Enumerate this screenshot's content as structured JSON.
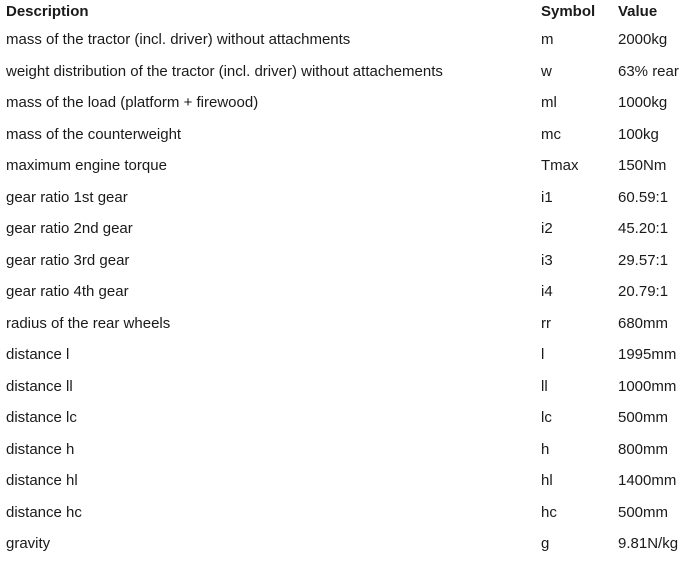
{
  "headers": {
    "description": "Description",
    "symbol": "Symbol",
    "value": "Value"
  },
  "rows": [
    {
      "description": "mass of the tractor (incl. driver) without attachments",
      "symbol": "m",
      "value": "2000kg"
    },
    {
      "description": "weight distribution of the tractor (incl. driver) without attachements",
      "symbol": "w",
      "value": "63% rear"
    },
    {
      "description": "mass of the load (platform + firewood)",
      "symbol": "ml",
      "value": "1000kg"
    },
    {
      "description": "mass of the counterweight",
      "symbol": "mc",
      "value": "100kg"
    },
    {
      "description": "maximum engine torque",
      "symbol": "Tmax",
      "value": "150Nm"
    },
    {
      "description": "gear ratio 1st gear",
      "symbol": "i1",
      "value": "60.59:1"
    },
    {
      "description": "gear ratio 2nd gear",
      "symbol": "i2",
      "value": "45.20:1"
    },
    {
      "description": "gear ratio 3rd gear",
      "symbol": "i3",
      "value": "29.57:1"
    },
    {
      "description": "gear ratio 4th gear",
      "symbol": "i4",
      "value": "20.79:1"
    },
    {
      "description": "radius of the rear wheels",
      "symbol": "rr",
      "value": "680mm"
    },
    {
      "description": "distance l",
      "symbol": "l",
      "value": "1995mm"
    },
    {
      "description": "distance ll",
      "symbol": "ll",
      "value": "1000mm"
    },
    {
      "description": "distance lc",
      "symbol": "lc",
      "value": "500mm"
    },
    {
      "description": "distance h",
      "symbol": "h",
      "value": "800mm"
    },
    {
      "description": "distance hl",
      "symbol": "hl",
      "value": "1400mm"
    },
    {
      "description": "distance hc",
      "symbol": "hc",
      "value": "500mm"
    },
    {
      "description": "gravity",
      "symbol": "g",
      "value": "9.81N/kg"
    }
  ]
}
